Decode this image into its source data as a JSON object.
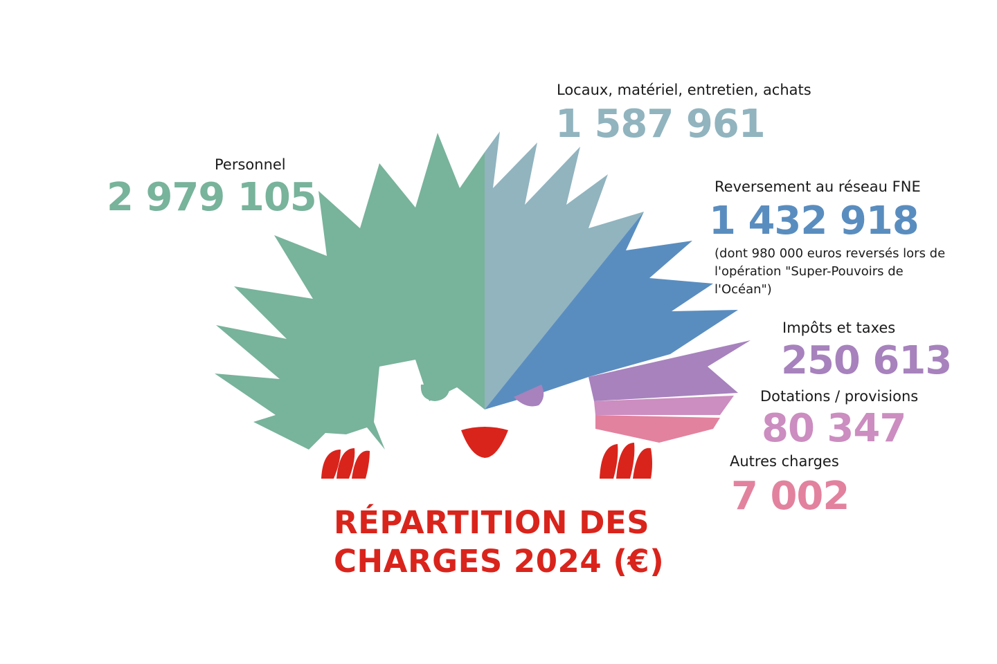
{
  "colors": {
    "personnel": "#78b39b",
    "locaux": "#91b4bf",
    "reversement": "#5a8dbf",
    "impots": "#a782bd",
    "dotations": "#cc8dc0",
    "autres": "#e2829f",
    "title": "#d9241c",
    "claws_mouth": "#d9241c"
  },
  "chart_data": {
    "type": "pie",
    "title": "RÉPARTITION DES CHARGES 2024 (€)",
    "title_lines": [
      "RÉPARTITION DES",
      "CHARGES 2024 (€)"
    ],
    "unit": "€",
    "categories": [
      "Personnel",
      "Locaux, matériel, entretien, achats",
      "Reversement au réseau FNE",
      "Impôts et taxes",
      "Dotations / provisions",
      "Autres charges"
    ],
    "values": [
      2979105,
      1587961,
      1432918,
      250613,
      80347,
      7002
    ],
    "value_labels": [
      "2 979 105",
      "1 587 961",
      "1 432 918",
      "250 613",
      "80 347",
      "7 002"
    ],
    "notes": {
      "reversement": "(dont 980 000 euros reversés lors de l'opération \"Super-Pouvoirs de l'Océan\")"
    }
  }
}
